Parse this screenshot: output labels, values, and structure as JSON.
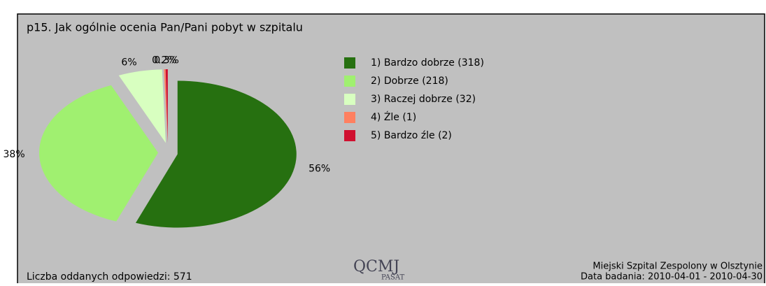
{
  "chart_data": {
    "type": "pie",
    "title": "p15. Jak ogólnie ocenia Pan/Pani pobyt w szpitalu",
    "categories": [
      "1) Bardzo dobrze (318)",
      "2) Dobrze (218)",
      "3) Raczej dobrze (32)",
      "4) Źle (1)",
      "5) Bardzo źle (2)"
    ],
    "values": [
      56,
      38,
      6,
      0.2,
      0.3
    ],
    "value_labels": [
      "56%",
      "38%",
      "6%",
      "0.2%",
      "0.3%"
    ],
    "colors": [
      "#267010",
      "#a0f070",
      "#d8ffc0",
      "#ff8060",
      "#d01030"
    ],
    "legend": "right"
  },
  "footer": {
    "responses": "Liczba oddanych odpowiedzi: 571",
    "hospital": "Miejski Szpital Zespolony w Olsztynie",
    "date": "Data badania: 2010-04-01 - 2010-04-30",
    "logo": "QCMJ",
    "logo_sub": "PASAT"
  }
}
